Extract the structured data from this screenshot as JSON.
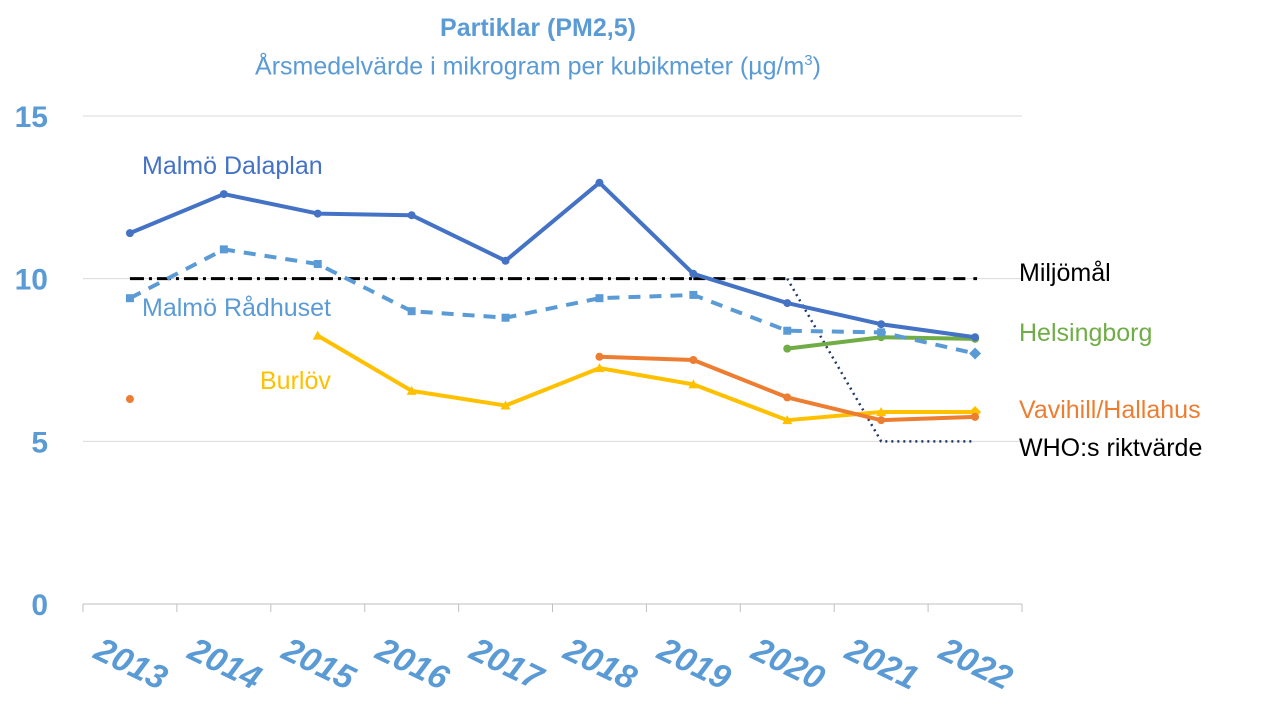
{
  "chart_data": {
    "type": "line",
    "title": "Partiklar (PM2,5)",
    "subtitle_main": "Årsmedelvärde i mikrogram per kubikmeter (µg/m",
    "subtitle_sup": "3",
    "subtitle_end": ")",
    "xlabel": "",
    "ylabel": "",
    "ylim": [
      0,
      15
    ],
    "yticks": [
      0,
      5,
      10,
      15
    ],
    "categories": [
      "2013",
      "2014",
      "2015",
      "2016",
      "2017",
      "2018",
      "2019",
      "2020",
      "2021",
      "2022"
    ],
    "grid": "horizontal",
    "legend": "none",
    "series": [
      {
        "name": "Malmö Dalaplan",
        "color": "#4472c4",
        "dash": "solid",
        "marker": "circle",
        "values": [
          11.4,
          12.6,
          12.0,
          11.95,
          10.55,
          12.95,
          10.15,
          9.25,
          8.6,
          8.2
        ]
      },
      {
        "name": "Malmö Rådhuset",
        "color": "#5b9bd5",
        "dash": "dashed",
        "marker": "square",
        "values": [
          9.4,
          10.9,
          10.45,
          9.0,
          8.8,
          9.4,
          9.5,
          8.4,
          8.35,
          7.7
        ]
      },
      {
        "name": "Burlöv",
        "color": "#ffc000",
        "dash": "solid",
        "marker": "triangle",
        "values": [
          null,
          null,
          8.25,
          6.55,
          6.1,
          7.25,
          6.75,
          5.65,
          5.9,
          5.9
        ]
      },
      {
        "name": "Vavihill/Hallahus",
        "color": "#ed7d31",
        "dash": "solid",
        "marker": "circle",
        "values": [
          6.3,
          null,
          null,
          null,
          null,
          7.6,
          7.5,
          6.35,
          5.65,
          5.75
        ]
      },
      {
        "name": "Helsingborg",
        "color": "#70ad47",
        "dash": "solid",
        "marker": "circle",
        "values": [
          null,
          null,
          null,
          null,
          null,
          null,
          null,
          7.85,
          8.2,
          8.15
        ]
      },
      {
        "name": "Miljömål",
        "color": "#000000",
        "dash": "dashdot-then-dashed",
        "marker": "none",
        "values": [
          10,
          10,
          10,
          10,
          10,
          10,
          10,
          10,
          10,
          10
        ]
      },
      {
        "name": "WHO:s riktvärde",
        "color": "#203864",
        "dash": "dotted",
        "marker": "none",
        "values": [
          null,
          null,
          null,
          null,
          null,
          null,
          null,
          10,
          5,
          5
        ]
      }
    ]
  }
}
